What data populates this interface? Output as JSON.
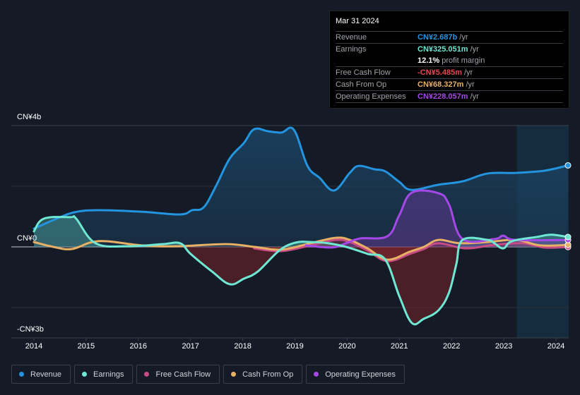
{
  "tooltip": {
    "date": "Mar 31 2024",
    "rows": [
      {
        "label": "Revenue",
        "value": "CN¥2.687b",
        "unit": "/yr",
        "color": "#2394df"
      },
      {
        "label": "Earnings",
        "value": "CN¥325.051m",
        "unit": "/yr",
        "color": "#6ee7d3"
      },
      {
        "label": "",
        "value": "12.1%",
        "unit": "profit margin",
        "color": "#ffffff"
      },
      {
        "label": "Free Cash Flow",
        "value": "-CN¥5.485m",
        "unit": "/yr",
        "color": "#e5484d"
      },
      {
        "label": "Cash From Op",
        "value": "CN¥68.327m",
        "unit": "/yr",
        "color": "#e8b064"
      },
      {
        "label": "Operating Expenses",
        "value": "CN¥228.057m",
        "unit": "/yr",
        "color": "#a548e8"
      }
    ]
  },
  "legend": [
    {
      "label": "Revenue",
      "color": "#2394df"
    },
    {
      "label": "Earnings",
      "color": "#6ee7d3"
    },
    {
      "label": "Free Cash Flow",
      "color": "#c84b86"
    },
    {
      "label": "Cash From Op",
      "color": "#e8b064"
    },
    {
      "label": "Operating Expenses",
      "color": "#a548e8"
    }
  ],
  "chart_data": {
    "type": "area",
    "title": "",
    "xlabel": "",
    "ylabel": "",
    "y_unit": "CN¥ billions",
    "ylim": [
      -3,
      4
    ],
    "xlim": [
      2013.56,
      2024.23
    ],
    "y_tick_labels": [
      {
        "value": 4,
        "label": "CN¥4b"
      },
      {
        "value": 0,
        "label": "CN¥0"
      },
      {
        "value": -3,
        "label": "-CN¥3b"
      }
    ],
    "gridlines": [
      4,
      2,
      0,
      -2,
      -3
    ],
    "x_ticks": [
      2014,
      2015,
      2016,
      2017,
      2018,
      2019,
      2020,
      2021,
      2022,
      2023,
      2024
    ],
    "highlight_range": [
      2023.25,
      2024.23
    ],
    "grid": true,
    "legend_position": "bottom",
    "series": [
      {
        "name": "Revenue",
        "color": "#2394df",
        "fill": true,
        "points": [
          [
            2014.0,
            0.6
          ],
          [
            2014.37,
            0.88
          ],
          [
            2014.77,
            1.14
          ],
          [
            2015.24,
            1.21
          ],
          [
            2016.06,
            1.16
          ],
          [
            2016.8,
            1.07
          ],
          [
            2017.03,
            1.21
          ],
          [
            2017.25,
            1.3
          ],
          [
            2017.48,
            1.98
          ],
          [
            2017.75,
            2.91
          ],
          [
            2018.02,
            3.42
          ],
          [
            2018.22,
            3.88
          ],
          [
            2018.49,
            3.81
          ],
          [
            2018.74,
            3.77
          ],
          [
            2018.98,
            3.86
          ],
          [
            2019.24,
            2.67
          ],
          [
            2019.47,
            2.28
          ],
          [
            2019.75,
            1.86
          ],
          [
            2020.05,
            2.44
          ],
          [
            2020.22,
            2.67
          ],
          [
            2020.52,
            2.56
          ],
          [
            2020.73,
            2.49
          ],
          [
            2021.0,
            2.14
          ],
          [
            2021.23,
            1.88
          ],
          [
            2021.75,
            2.05
          ],
          [
            2022.21,
            2.16
          ],
          [
            2022.69,
            2.42
          ],
          [
            2023.23,
            2.44
          ],
          [
            2023.77,
            2.51
          ],
          [
            2024.23,
            2.687
          ]
        ]
      },
      {
        "name": "Earnings",
        "color": "#6ee7d3",
        "fill": true,
        "points": [
          [
            2014.0,
            0.51
          ],
          [
            2014.19,
            0.93
          ],
          [
            2014.7,
            0.98
          ],
          [
            2014.81,
            0.93
          ],
          [
            2015.18,
            0.12
          ],
          [
            2015.79,
            0.02
          ],
          [
            2016.46,
            0.09
          ],
          [
            2016.8,
            0.12
          ],
          [
            2017.0,
            -0.23
          ],
          [
            2017.41,
            -0.81
          ],
          [
            2017.75,
            -1.23
          ],
          [
            2018.02,
            -1.05
          ],
          [
            2018.29,
            -0.81
          ],
          [
            2018.7,
            -0.12
          ],
          [
            2019.01,
            0.14
          ],
          [
            2019.3,
            0.16
          ],
          [
            2019.64,
            0.12
          ],
          [
            2019.98,
            0.0
          ],
          [
            2020.39,
            -0.23
          ],
          [
            2020.73,
            -0.42
          ],
          [
            2021.0,
            -1.63
          ],
          [
            2021.24,
            -2.51
          ],
          [
            2021.47,
            -2.37
          ],
          [
            2021.75,
            -2.09
          ],
          [
            2021.95,
            -1.51
          ],
          [
            2022.09,
            -0.58
          ],
          [
            2022.21,
            0.23
          ],
          [
            2022.69,
            0.23
          ],
          [
            2022.82,
            0.12
          ],
          [
            2022.99,
            -0.05
          ],
          [
            2023.16,
            0.19
          ],
          [
            2023.64,
            0.33
          ],
          [
            2023.91,
            0.4
          ],
          [
            2024.23,
            0.325
          ]
        ]
      },
      {
        "name": "Free Cash Flow",
        "color": "#c84b86",
        "fill": true,
        "points": [
          [
            2018.22,
            -0.05
          ],
          [
            2018.74,
            -0.14
          ],
          [
            2019.3,
            0.05
          ],
          [
            2019.78,
            0.23
          ],
          [
            2020.05,
            0.16
          ],
          [
            2020.39,
            -0.12
          ],
          [
            2020.77,
            -0.47
          ],
          [
            2021.2,
            -0.23
          ],
          [
            2021.47,
            -0.07
          ],
          [
            2021.75,
            0.12
          ],
          [
            2022.28,
            -0.05
          ],
          [
            2022.82,
            0.07
          ],
          [
            2023.37,
            0.12
          ],
          [
            2023.77,
            -0.02
          ],
          [
            2024.23,
            -0.005
          ]
        ]
      },
      {
        "name": "Cash From Op",
        "color": "#e8b064",
        "fill": false,
        "points": [
          [
            2014.0,
            0.16
          ],
          [
            2014.37,
            0.0
          ],
          [
            2014.73,
            -0.07
          ],
          [
            2015.24,
            0.19
          ],
          [
            2016.06,
            0.05
          ],
          [
            2016.73,
            0.02
          ],
          [
            2017.68,
            0.09
          ],
          [
            2018.22,
            0.0
          ],
          [
            2018.74,
            -0.09
          ],
          [
            2019.3,
            0.12
          ],
          [
            2019.78,
            0.3
          ],
          [
            2020.05,
            0.23
          ],
          [
            2020.39,
            -0.05
          ],
          [
            2020.77,
            -0.42
          ],
          [
            2021.2,
            -0.16
          ],
          [
            2021.47,
            0.0
          ],
          [
            2021.75,
            0.23
          ],
          [
            2022.15,
            0.12
          ],
          [
            2022.69,
            0.16
          ],
          [
            2023.23,
            0.23
          ],
          [
            2023.7,
            0.05
          ],
          [
            2024.23,
            0.068
          ]
        ]
      },
      {
        "name": "Operating Expenses",
        "color": "#a548e8",
        "fill": true,
        "points": [
          [
            2019.21,
            0.05
          ],
          [
            2019.71,
            -0.02
          ],
          [
            2019.98,
            0.12
          ],
          [
            2020.25,
            0.28
          ],
          [
            2020.77,
            0.35
          ],
          [
            2021.0,
            1.05
          ],
          [
            2021.24,
            1.79
          ],
          [
            2021.75,
            1.77
          ],
          [
            2021.95,
            1.4
          ],
          [
            2022.21,
            0.26
          ],
          [
            2022.82,
            0.26
          ],
          [
            2022.99,
            0.37
          ],
          [
            2023.23,
            0.23
          ],
          [
            2024.23,
            0.228
          ]
        ]
      }
    ]
  }
}
